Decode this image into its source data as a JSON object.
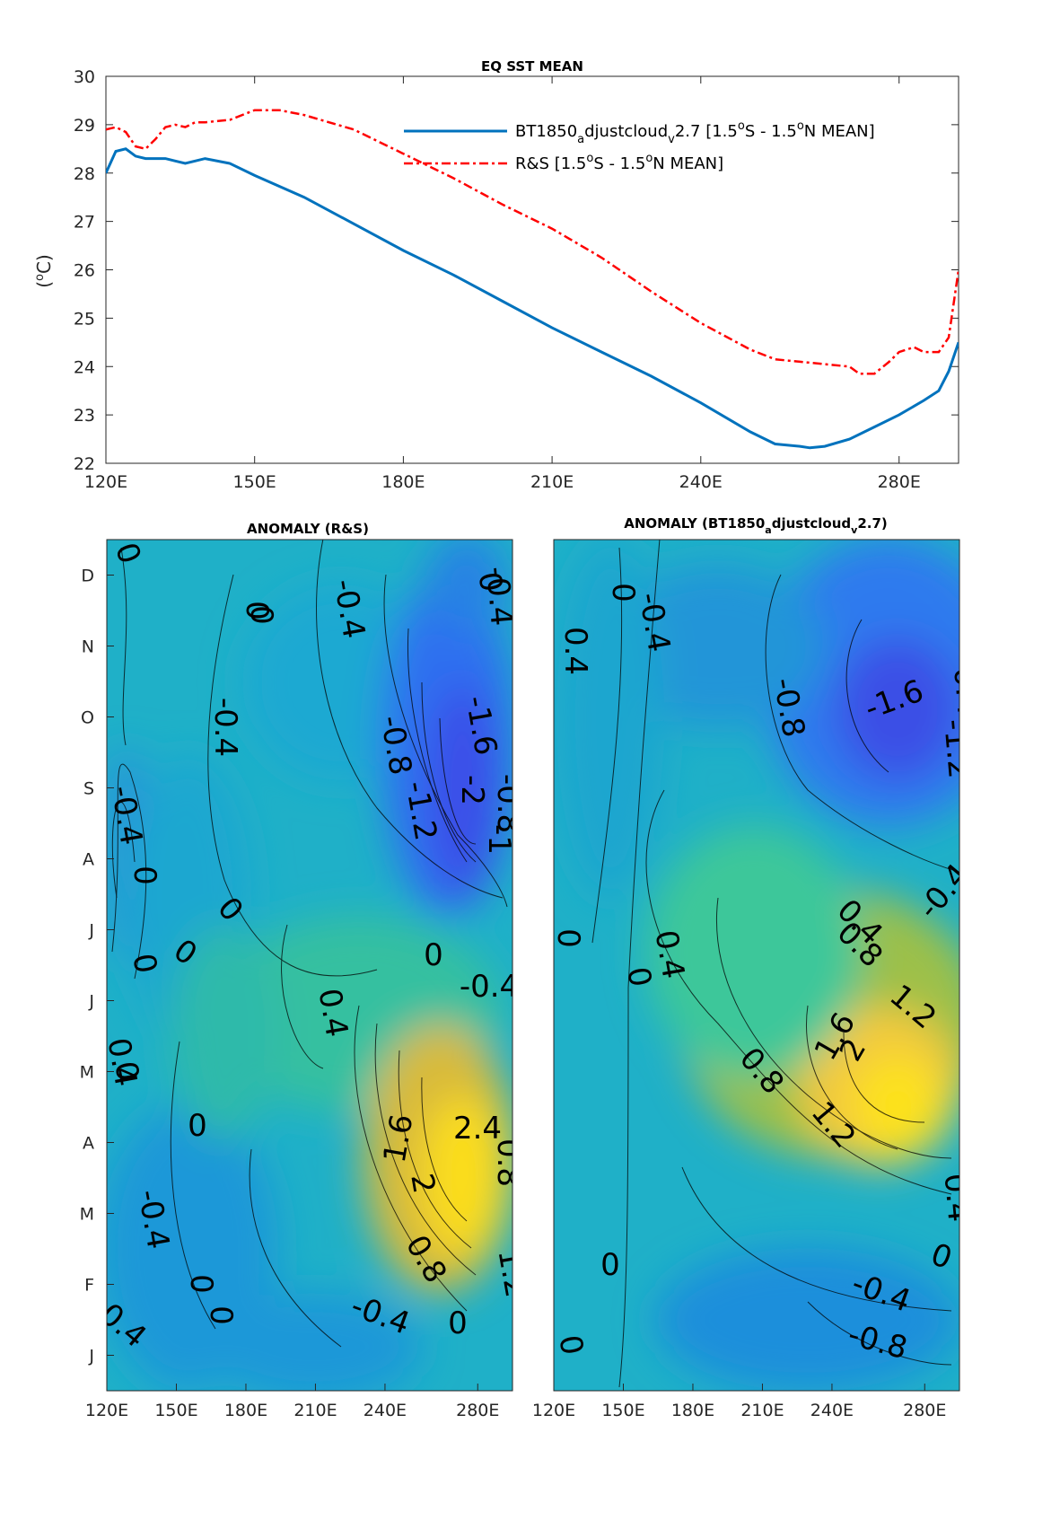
{
  "chart_data": [
    {
      "type": "line",
      "title": "EQ SST MEAN",
      "xlabel": "",
      "ylabel": "(°C)",
      "xlim": [
        120,
        292
      ],
      "ylim": [
        22,
        30
      ],
      "xticks": [
        120,
        150,
        180,
        210,
        240,
        280
      ],
      "xticklabels": [
        "120E",
        "150E",
        "180E",
        "210E",
        "240E",
        "280E"
      ],
      "yticks": [
        22,
        23,
        24,
        25,
        26,
        27,
        28,
        29,
        30
      ],
      "legend": "top-right",
      "grid": false,
      "series": [
        {
          "name": "BT1850_adjustcloud_v2.7 [1.5°S - 1.5°N MEAN]",
          "legend_parts": [
            "BT1850",
            "a",
            "djustcloud",
            "v",
            "2.7 [1.5",
            "o",
            "S - 1.5",
            "o",
            "N MEAN]"
          ],
          "color": "#0072BD",
          "style": "solid",
          "x": [
            120,
            122,
            124,
            126,
            128,
            130,
            132,
            134,
            136,
            138,
            140,
            145,
            150,
            160,
            170,
            180,
            190,
            200,
            210,
            220,
            230,
            240,
            250,
            255,
            260,
            262,
            265,
            270,
            275,
            280,
            285,
            288,
            290,
            292
          ],
          "y": [
            28.0,
            28.45,
            28.5,
            28.35,
            28.3,
            28.3,
            28.3,
            28.25,
            28.2,
            28.25,
            28.3,
            28.2,
            27.95,
            27.5,
            26.95,
            26.4,
            25.9,
            25.35,
            24.8,
            24.3,
            23.8,
            23.25,
            22.65,
            22.4,
            22.35,
            22.32,
            22.35,
            22.5,
            22.75,
            23.0,
            23.3,
            23.5,
            23.9,
            24.5
          ]
        },
        {
          "name": "R&S [1.5°S - 1.5°N MEAN]",
          "legend_parts": [
            "R&S [1.5",
            "o",
            "S - 1.5",
            "o",
            "N MEAN]"
          ],
          "color": "#FF0000",
          "style": "dash-dot",
          "x": [
            120,
            122,
            124,
            126,
            128,
            130,
            132,
            134,
            136,
            138,
            140,
            145,
            150,
            155,
            160,
            170,
            180,
            190,
            200,
            210,
            220,
            230,
            240,
            250,
            255,
            260,
            265,
            270,
            272,
            275,
            278,
            280,
            283,
            285,
            288,
            290,
            292
          ],
          "y": [
            28.9,
            28.95,
            28.85,
            28.55,
            28.5,
            28.7,
            28.95,
            29.0,
            28.95,
            29.05,
            29.05,
            29.1,
            29.3,
            29.3,
            29.2,
            28.9,
            28.4,
            27.9,
            27.35,
            26.85,
            26.25,
            25.55,
            24.9,
            24.35,
            24.15,
            24.1,
            24.05,
            24.0,
            23.85,
            23.85,
            24.1,
            24.3,
            24.4,
            24.3,
            24.3,
            24.6,
            26.0
          ]
        }
      ]
    },
    {
      "type": "heatmap",
      "title": "ANOMALY (R&S)",
      "xlabel": "",
      "ylabel": "",
      "xlim": [
        120,
        295
      ],
      "xticks": [
        120,
        150,
        180,
        210,
        240,
        280
      ],
      "xticklabels": [
        "120E",
        "150E",
        "180E",
        "210E",
        "240E",
        "280E"
      ],
      "yticklabels": [
        "J",
        "F",
        "M",
        "A",
        "M",
        "J",
        "J",
        "A",
        "S",
        "O",
        "N",
        "D"
      ],
      "colormap": "parula",
      "contour_labels": [
        "0",
        "-0.4",
        "0",
        "0.4",
        "-0.4",
        "0",
        "-0.8",
        "-1.2",
        "-1.6",
        "-2",
        "-0.8",
        "-1",
        "0",
        "-0.4",
        "0.4",
        "0",
        "1.6",
        "2.4",
        "0.8",
        "2",
        "1.2",
        "0.8",
        "-0.4",
        "0",
        "0",
        "0",
        "0",
        "-0.4",
        "0",
        "0",
        "0",
        "-0.4",
        "0",
        "0.4",
        "0",
        "-0.4"
      ]
    },
    {
      "type": "heatmap",
      "title": "ANOMALY (BT1850_adjustcloud_v2.7)",
      "title_parts": [
        "ANOMALY (BT1850",
        "a",
        "djustcloud",
        "v",
        "2.7)"
      ],
      "xlabel": "",
      "ylabel": "",
      "xlim": [
        120,
        295
      ],
      "xticks": [
        120,
        150,
        180,
        210,
        240,
        280
      ],
      "xticklabels": [
        "120E",
        "150E",
        "180E",
        "210E",
        "240E",
        "280E"
      ],
      "colormap": "parula",
      "contour_labels": [
        "0",
        "-0.4",
        "0.4",
        "-0.8",
        "-1.6",
        "-1.2",
        "-0.4",
        "0",
        "0.4",
        "0",
        "-0.4",
        "0.8",
        "0.4",
        "1.6",
        "2",
        "1.2",
        "0.8",
        "1.2",
        "0.4",
        "0",
        "0",
        "-0.4",
        "-0.8",
        "0"
      ]
    }
  ]
}
